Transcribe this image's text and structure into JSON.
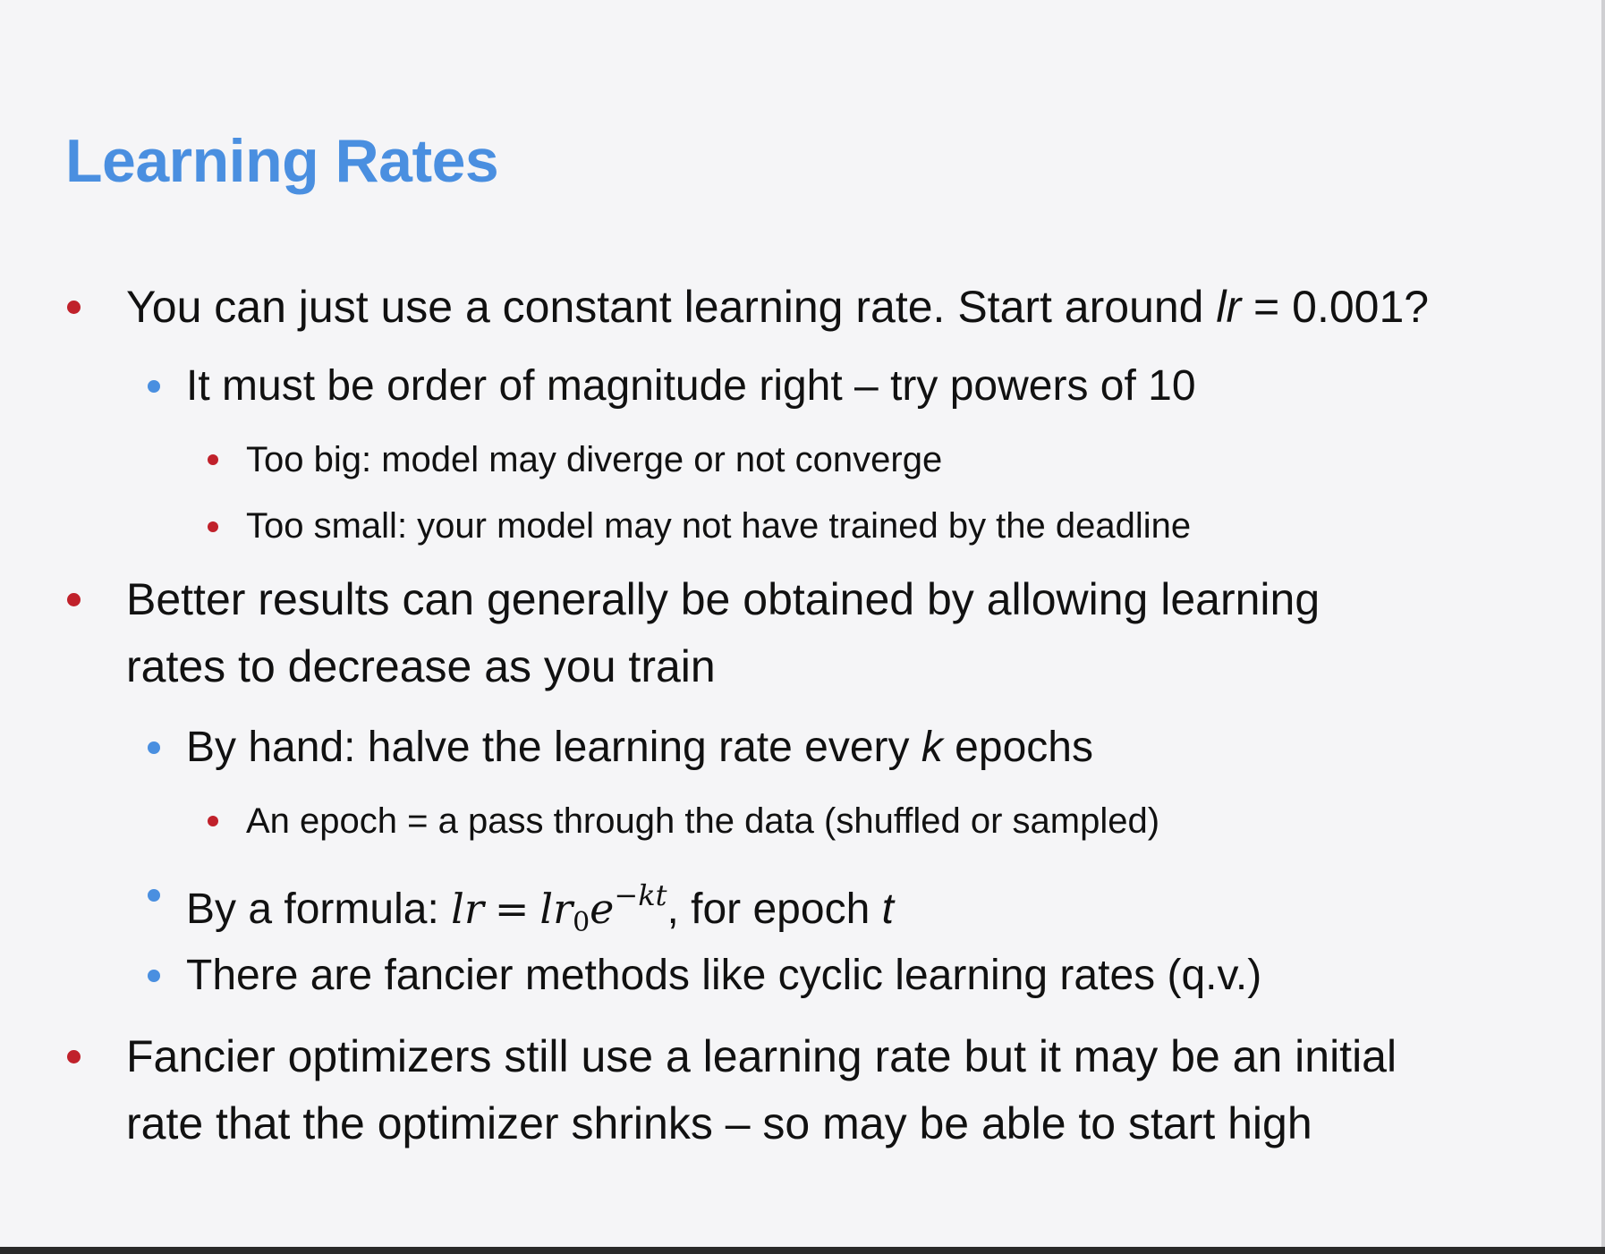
{
  "slide": {
    "title": "Learning Rates",
    "bullets": {
      "b1": {
        "text_before": "You can just use a constant learning rate. Start around ",
        "var": "lr",
        "text_after": " = 0.001?"
      },
      "b1_1": {
        "text": "It must be order of magnitude right – try powers of 10"
      },
      "b1_1_1": {
        "text": "Too big: model may diverge or not converge"
      },
      "b1_1_2": {
        "text": "Too small: your model may not have trained by the deadline"
      },
      "b2": {
        "line1": "Better results can generally be obtained by allowing learning",
        "line2": "rates to decrease as you train"
      },
      "b2_1": {
        "text_before": "By hand: halve the learning rate every ",
        "var": "k",
        "text_after": " epochs"
      },
      "b2_1_1": {
        "text": "An epoch = a pass through the data (shuffled or sampled)"
      },
      "b2_2": {
        "text_before": "By a formula: ",
        "formula_lhs": "lr",
        "formula_eq": "=",
        "formula_rhs_base": "lr",
        "formula_rhs_sub": "0",
        "formula_rhs_exp_base": "e",
        "formula_rhs_sup": "−kt",
        "text_after": ", for epoch ",
        "var_t": "t"
      },
      "b2_3": {
        "text": "There are fancier methods like cyclic learning rates (q.v.)"
      },
      "b3": {
        "line1": "Fancier optimizers still use a learning rate but it may be an initial",
        "line2": "rate that the optimizer shrinks – so may be able to start high"
      }
    }
  },
  "colors": {
    "background": "#f5f5f7",
    "title": "#4a8fe0",
    "text": "#111111",
    "bullet_level1": "#c0212b",
    "bullet_level2": "#4a8fe0",
    "bullet_level3": "#c0212b"
  }
}
